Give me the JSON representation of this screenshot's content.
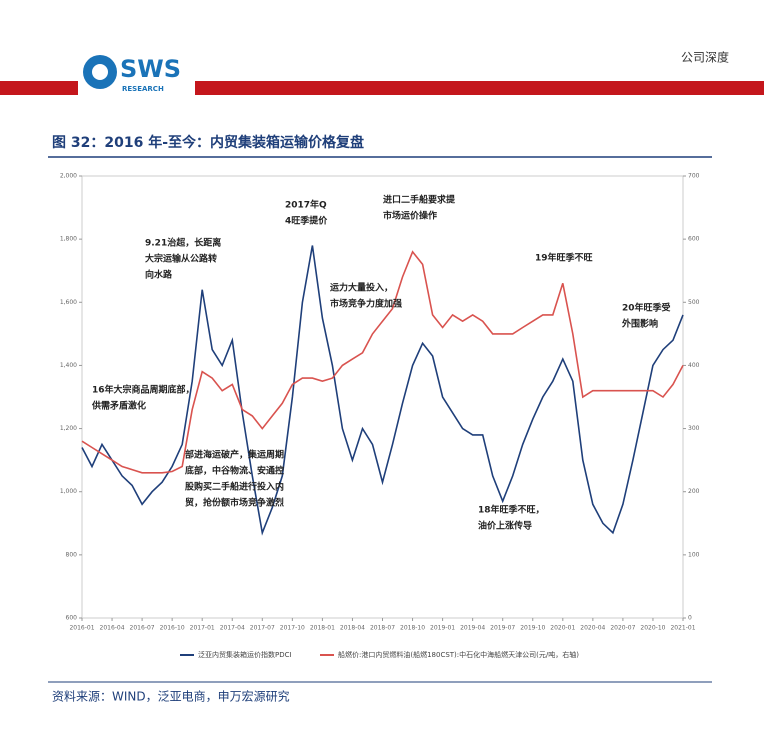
{
  "header": {
    "label": "公司深度",
    "logo": "SWS",
    "logo_sub": "RESEARCH"
  },
  "figure": {
    "title": "图 32：2016 年-至今：内贸集装箱运输价格复盘",
    "source": "资料来源：WIND，泛亚电商，申万宏源研究"
  },
  "chart_data": {
    "type": "line",
    "categories": [
      "2016-01",
      null,
      null,
      "2016-04",
      null,
      null,
      "2016-07",
      null,
      null,
      "2016-10",
      null,
      null,
      "2017-01",
      null,
      null,
      "2017-04",
      null,
      null,
      "2017-07",
      null,
      null,
      "2017-10",
      null,
      null,
      "2018-01",
      null,
      null,
      "2018-04",
      null,
      null,
      "2018-07",
      null,
      null,
      "2018-10",
      null,
      null,
      "2019-01",
      null,
      null,
      "2019-04",
      null,
      null,
      "2019-07",
      null,
      null,
      "2019-10",
      null,
      null,
      "2020-01",
      null,
      null,
      "2020-04",
      null,
      null,
      "2020-07",
      null,
      null,
      "2020-10",
      null,
      null,
      "2021-01"
    ],
    "series": [
      {
        "name": "泛亚内贸集装箱运价指数PDCI",
        "color": "#1f3f7a",
        "values": [
          1140,
          1080,
          1150,
          1100,
          1050,
          1020,
          960,
          1000,
          1030,
          1080,
          1150,
          1350,
          1640,
          1450,
          1400,
          1480,
          1250,
          1050,
          870,
          950,
          1050,
          1300,
          1600,
          1780,
          1550,
          1400,
          1200,
          1100,
          1200,
          1150,
          1030,
          1150,
          1280,
          1400,
          1470,
          1430,
          1300,
          1250,
          1200,
          1180,
          1180,
          1050,
          970,
          1050,
          1150,
          1230,
          1300,
          1350,
          1420,
          1350,
          1100,
          960,
          900,
          870,
          960,
          1100,
          1250,
          1400,
          1450,
          1480,
          1560
        ]
      },
      {
        "name": "船燃价:港口内贸燃料油(船燃180CST):中石化中海船燃天津公司(元/吨，右轴)",
        "color": "#d9534f",
        "axis": "y2",
        "values": [
          280,
          270,
          260,
          250,
          240,
          235,
          230,
          230,
          230,
          232,
          240,
          330,
          390,
          380,
          360,
          370,
          330,
          320,
          300,
          320,
          340,
          370,
          380,
          380,
          375,
          380,
          400,
          410,
          420,
          450,
          470,
          490,
          540,
          580,
          560,
          480,
          460,
          480,
          470,
          480,
          470,
          450,
          450,
          450,
          460,
          470,
          480,
          480,
          530,
          450,
          350,
          360,
          360,
          360,
          360,
          360,
          360,
          360,
          350,
          370,
          400
        ]
      }
    ],
    "ylim": [
      600,
      2000
    ],
    "yticks": [
      600,
      800,
      {
        "value": 1000,
        "label": "1,000"
      },
      {
        "value": 1200,
        "label": "1,200"
      },
      {
        "value": 1400,
        "label": "1,400"
      },
      {
        "value": 1600,
        "label": "1,600"
      },
      {
        "value": 1800,
        "label": "1,800"
      },
      {
        "value": 2000,
        "label": "2,000"
      }
    ],
    "y2lim": [
      0,
      700
    ],
    "y2ticks": [
      0,
      100,
      200,
      300,
      400,
      500,
      600,
      700
    ],
    "annotations": [
      [
        "9.21治超，长距离",
        "大宗运输从公路转",
        "向水路"
      ],
      [
        "2017年Q",
        "4旺季提价"
      ],
      [
        "进口二手船要求提",
        "市场运价操作"
      ],
      [
        "运力大量投入，",
        "市场竞争力度加强"
      ],
      [
        "19年旺季不旺"
      ],
      [
        "20年旺季受",
        "外围影响"
      ],
      [
        "16年大宗商品周期底部，",
        "供需矛盾激化"
      ],
      [
        "部进海运破产，集运周期",
        "底部，中谷物流、安通控",
        "股购买二手船进行投入内",
        "贸，抢份额市场竞争激烈"
      ],
      [
        "18年旺季不旺，",
        "油价上涨传导"
      ]
    ]
  }
}
